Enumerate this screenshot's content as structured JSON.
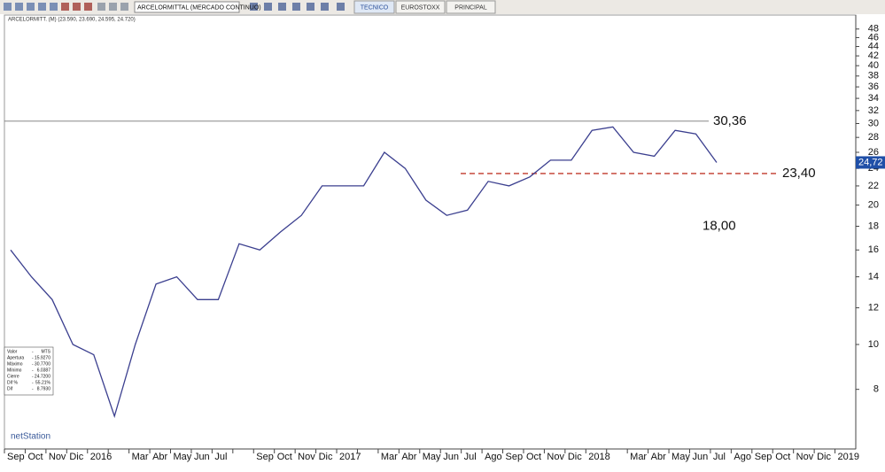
{
  "toolbar": {
    "instrument": "ARCELORMITTAL (MERCADO CONTINUO)",
    "tabs": [
      "TECNICO",
      "EUROSTOXX",
      "PRINCIPAL"
    ]
  },
  "chart_data": {
    "type": "line",
    "legend": "ARCELORMITT. (M) (23.590, 23.690, 24.595, 24.720)",
    "categories": [
      "Sep",
      "Oct",
      "Nov",
      "Dic",
      "2016",
      null,
      "Mar",
      "Abr",
      "May",
      "Jun",
      "Jul",
      null,
      "Sep",
      "Oct",
      "Nov",
      "Dic",
      "2017",
      null,
      "Mar",
      "Abr",
      "May",
      "Jun",
      "Jul",
      "Ago",
      "Sep",
      "Oct",
      "Nov",
      "Dic",
      "2018",
      null,
      "Mar",
      "Abr",
      "May",
      "Jun",
      "Jul",
      "Ago",
      "Sep",
      "Oct",
      "Nov",
      "Dic",
      "2019"
    ],
    "series": [
      {
        "color": "#3b3f8f",
        "values": [
          16,
          14,
          12.5,
          10,
          9.5,
          7,
          10,
          13.5,
          14,
          12.5,
          12.5,
          16.5,
          16,
          17.5,
          19,
          22,
          22,
          22,
          26,
          24,
          20.5,
          19,
          19.5,
          22.5,
          22,
          23,
          25,
          25,
          29,
          29.5,
          26,
          25.5,
          29,
          28.5,
          24.72,
          null,
          null,
          null,
          null,
          null,
          null
        ]
      }
    ],
    "ylim": [
      6,
      51
    ],
    "log_scale": true,
    "yticks": [
      8,
      10,
      12,
      14,
      16,
      18,
      20,
      22,
      24,
      26,
      28,
      30,
      32,
      34,
      36,
      38,
      40,
      42,
      44,
      46,
      48
    ],
    "hlines": [
      {
        "value": 30.36,
        "label": "30,36",
        "style": "solid",
        "color": "#777777"
      },
      {
        "value": 23.4,
        "label": "23,40",
        "style": "dashed",
        "color": "#c0392b"
      }
    ],
    "text_labels": [
      {
        "value": 18,
        "label": "18,00"
      }
    ],
    "last_price": {
      "value": 24.72,
      "label": "24,72",
      "color": "#1f4fa8"
    }
  },
  "info_box": {
    "rows": [
      [
        "Valor",
        "-",
        "MTS"
      ],
      [
        "Apertura",
        "-",
        "15.9270"
      ],
      [
        "Máximo",
        "-",
        "30.7700"
      ],
      [
        "Mínimo",
        "-",
        "6.0387"
      ],
      [
        "Cierre",
        "-",
        "24.7200"
      ],
      [
        "Dif %",
        "-",
        "55.21%"
      ],
      [
        "Dif",
        "-",
        "8.7930"
      ]
    ]
  },
  "logo": "netStation"
}
